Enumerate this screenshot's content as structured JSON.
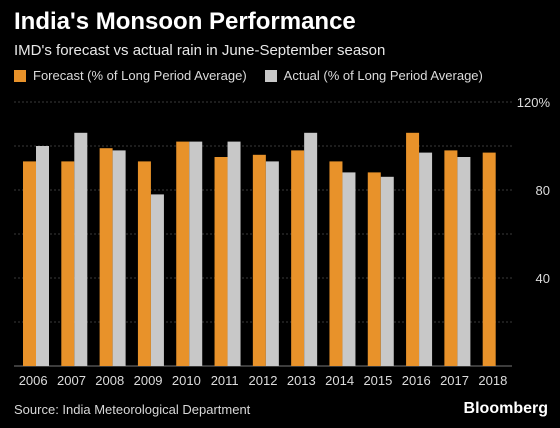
{
  "chart_data": {
    "type": "bar",
    "title": "India's Monsoon Performance",
    "subtitle": "IMD's forecast vs actual rain in June-September season",
    "categories": [
      "2006",
      "2007",
      "2008",
      "2009",
      "2010",
      "2011",
      "2012",
      "2013",
      "2014",
      "2015",
      "2016",
      "2017",
      "2018"
    ],
    "series": [
      {
        "name": "Forecast (% of Long Period Average)",
        "color": "#e8922a",
        "values": [
          93,
          93,
          99,
          93,
          102,
          95,
          96,
          98,
          93,
          88,
          106,
          98,
          97
        ]
      },
      {
        "name": "Actual (% of Long Period Average)",
        "color": "#c8c8c8",
        "values": [
          100,
          106,
          98,
          78,
          102,
          102,
          93,
          106,
          88,
          86,
          97,
          95,
          null
        ]
      }
    ],
    "yticks": [
      "40",
      "80",
      "120%"
    ],
    "ylim": [
      0,
      120
    ],
    "grid": true,
    "legend_position": "top-left"
  },
  "source": "Source: India Meteorological Department",
  "brand": "Bloomberg"
}
